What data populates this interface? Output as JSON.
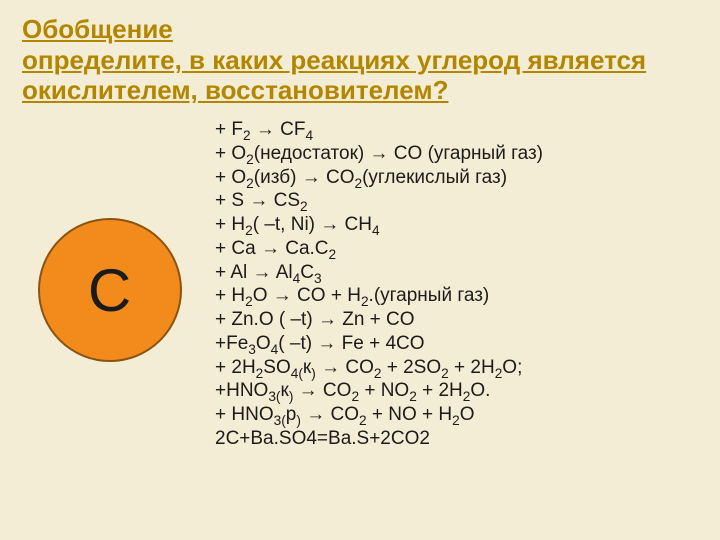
{
  "title_lines": [
    "Обобщение",
    "определите, в каких реакциях углерод является",
    "окислителем, восстановителем?"
  ],
  "circle": {
    "label": "C",
    "fill_color": "#f28a1c",
    "border_color": "#8a5410",
    "text_color": "#1b1b19"
  },
  "reactions": [
    "+ F₂ → CF₄",
    "+ O₂(недостаток) → CO (угарный газ)",
    "+ O₂(изб) → CO₂(углекислый газ)",
    "+ S → CS₂",
    "+ H₂( –t, Ni) → CH₄",
    "+ Ca → Ca.C₂",
    " + Al → Al₄C₃",
    " + H₂O → CO + H₂.(угарный  газ)",
    " + Zn.O ( –t) → Zn + CO",
    "+Fe₃O₄( –t) → Fe + 4CO",
    " + 2H₂SO₄₍к₎ → CO₂ + 2SO₂ + 2H₂O;",
    " +HNO₃₍к₎ → CO₂ + NO₂ + 2H₂O.",
    " + HNO₃₍р₎ → CO₂ + NO + H₂O",
    " 2C+Ba.SO4=Ba.S+2CO2"
  ],
  "colors": {
    "background": "#f4edd5",
    "title_color": "#b38600",
    "text_color": "#1b1b19"
  },
  "fonts": {
    "title_size": 26,
    "body_size": 19,
    "circle_size": 60
  }
}
